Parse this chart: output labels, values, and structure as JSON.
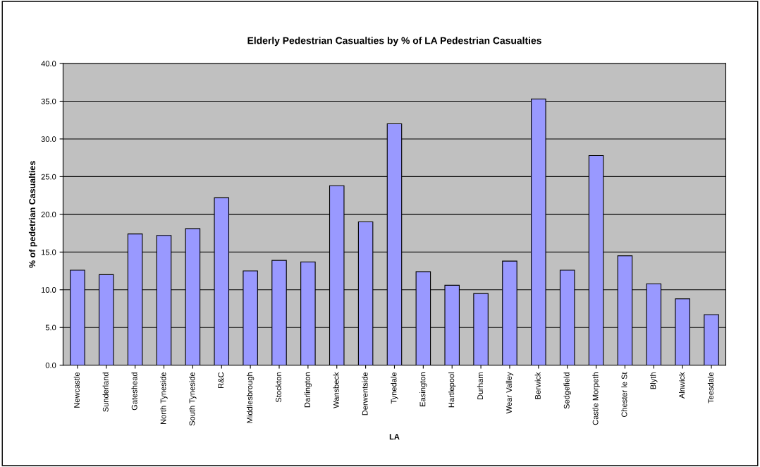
{
  "chart_data": {
    "type": "bar",
    "title": "Elderly Pedestrian Casualties by % of LA Pedestrian Casualties",
    "xlabel": "LA",
    "ylabel": "% of pedetrian Casualties",
    "categories": [
      "Newcastle",
      "Sunderland",
      "Gateshead",
      "North Tyneside",
      "South Tyneside",
      "R&C",
      "Middlesbrough",
      "Stockton",
      "Darlington",
      "Wansbeck",
      "Derwentside",
      "Tynedale",
      "Easington",
      "Hartlepool",
      "Durham",
      "Wear Valley",
      "Berwick",
      "Sedgefield",
      "Castle Morpeth",
      "Chester le St",
      "Blyth",
      "Alnwick",
      "Teesdale"
    ],
    "values": [
      12.6,
      12.0,
      17.4,
      17.2,
      18.1,
      22.2,
      12.5,
      13.9,
      13.7,
      23.8,
      19.0,
      32.0,
      12.4,
      10.6,
      9.5,
      13.8,
      35.3,
      12.6,
      27.8,
      14.5,
      10.8,
      8.8,
      6.7
    ],
    "color": "#9999ff",
    "ylim": [
      0,
      40
    ],
    "yticks": [
      {
        "value": 0,
        "label": "0.0"
      },
      {
        "value": 5,
        "label": "5.0"
      },
      {
        "value": 10,
        "label": "10.0"
      },
      {
        "value": 15,
        "label": "15.0"
      },
      {
        "value": 20,
        "label": "20.0"
      },
      {
        "value": 25,
        "label": "25.0"
      },
      {
        "value": 30,
        "label": "30.0"
      },
      {
        "value": 35,
        "label": "35.0"
      },
      {
        "value": 40,
        "label": "40.0"
      }
    ],
    "grid": "y",
    "legend": false
  }
}
